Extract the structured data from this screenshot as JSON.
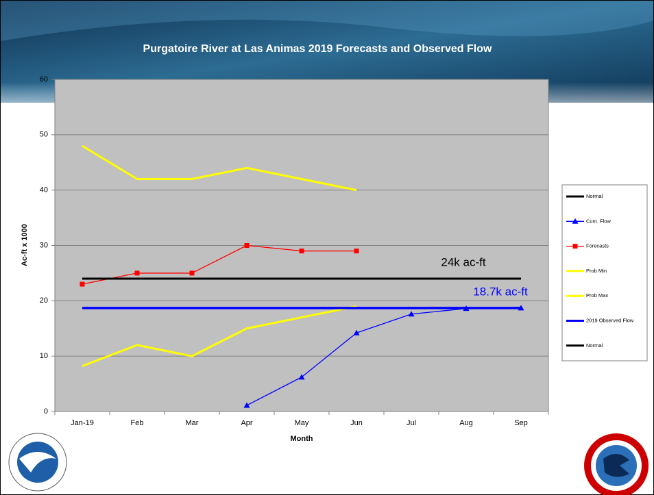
{
  "chart_data": {
    "type": "line",
    "title": "Purgatoire River at Las Animas 2019 Forecasts and Observed Flow",
    "x_label": "Month",
    "y_label": "Ac-ft x 1000",
    "categories": [
      "Jan-19",
      "Feb",
      "Mar",
      "Apr",
      "May",
      "Jun",
      "Jul",
      "Aug",
      "Sep"
    ],
    "ylim": [
      0,
      60
    ],
    "yticks": [
      0,
      10,
      20,
      30,
      40,
      50,
      60
    ],
    "grid": true,
    "legend": "right",
    "series": [
      {
        "name": "Normal",
        "color": "#000000",
        "line_width": 3,
        "marker": "none",
        "values": [
          24,
          24,
          24,
          24,
          24,
          24,
          24,
          24,
          24
        ]
      },
      {
        "name": "Cum. Flow",
        "color": "#0000ff",
        "line_width": 1.3,
        "marker": "triangle",
        "values": [
          null,
          null,
          null,
          1.1,
          6.2,
          14.2,
          17.6,
          18.6,
          18.7
        ]
      },
      {
        "name": "Forecasts",
        "color": "#ff0000",
        "line_width": 1.3,
        "marker": "square",
        "values": [
          23,
          25,
          25,
          30,
          29,
          29,
          null,
          null,
          null
        ]
      },
      {
        "name": "Prob Min",
        "color": "#ffff00",
        "line_width": 3,
        "marker": "none",
        "values": [
          8.2,
          12,
          10,
          15,
          17,
          19,
          null,
          null,
          null
        ]
      },
      {
        "name": "Prob Max",
        "color": "#ffff00",
        "line_width": 3,
        "marker": "none",
        "values": [
          48,
          42,
          42,
          44,
          42,
          40,
          null,
          null,
          null
        ]
      },
      {
        "name": "2019 Observed Flow",
        "color": "#0000ff",
        "line_width": 3.5,
        "marker": "none",
        "values": [
          18.7,
          18.7,
          18.7,
          18.7,
          18.7,
          18.7,
          18.7,
          18.7,
          18.7
        ]
      },
      {
        "name": "Normal",
        "color": "#000000",
        "line_width": 3,
        "marker": "none",
        "values": [
          24,
          24,
          24,
          24,
          24,
          24,
          24,
          24,
          24
        ]
      }
    ],
    "annotations": [
      {
        "text": "24k ac-ft",
        "color": "#000000"
      },
      {
        "text": "18.7k ac-ft",
        "color": "#0000ff"
      }
    ]
  }
}
